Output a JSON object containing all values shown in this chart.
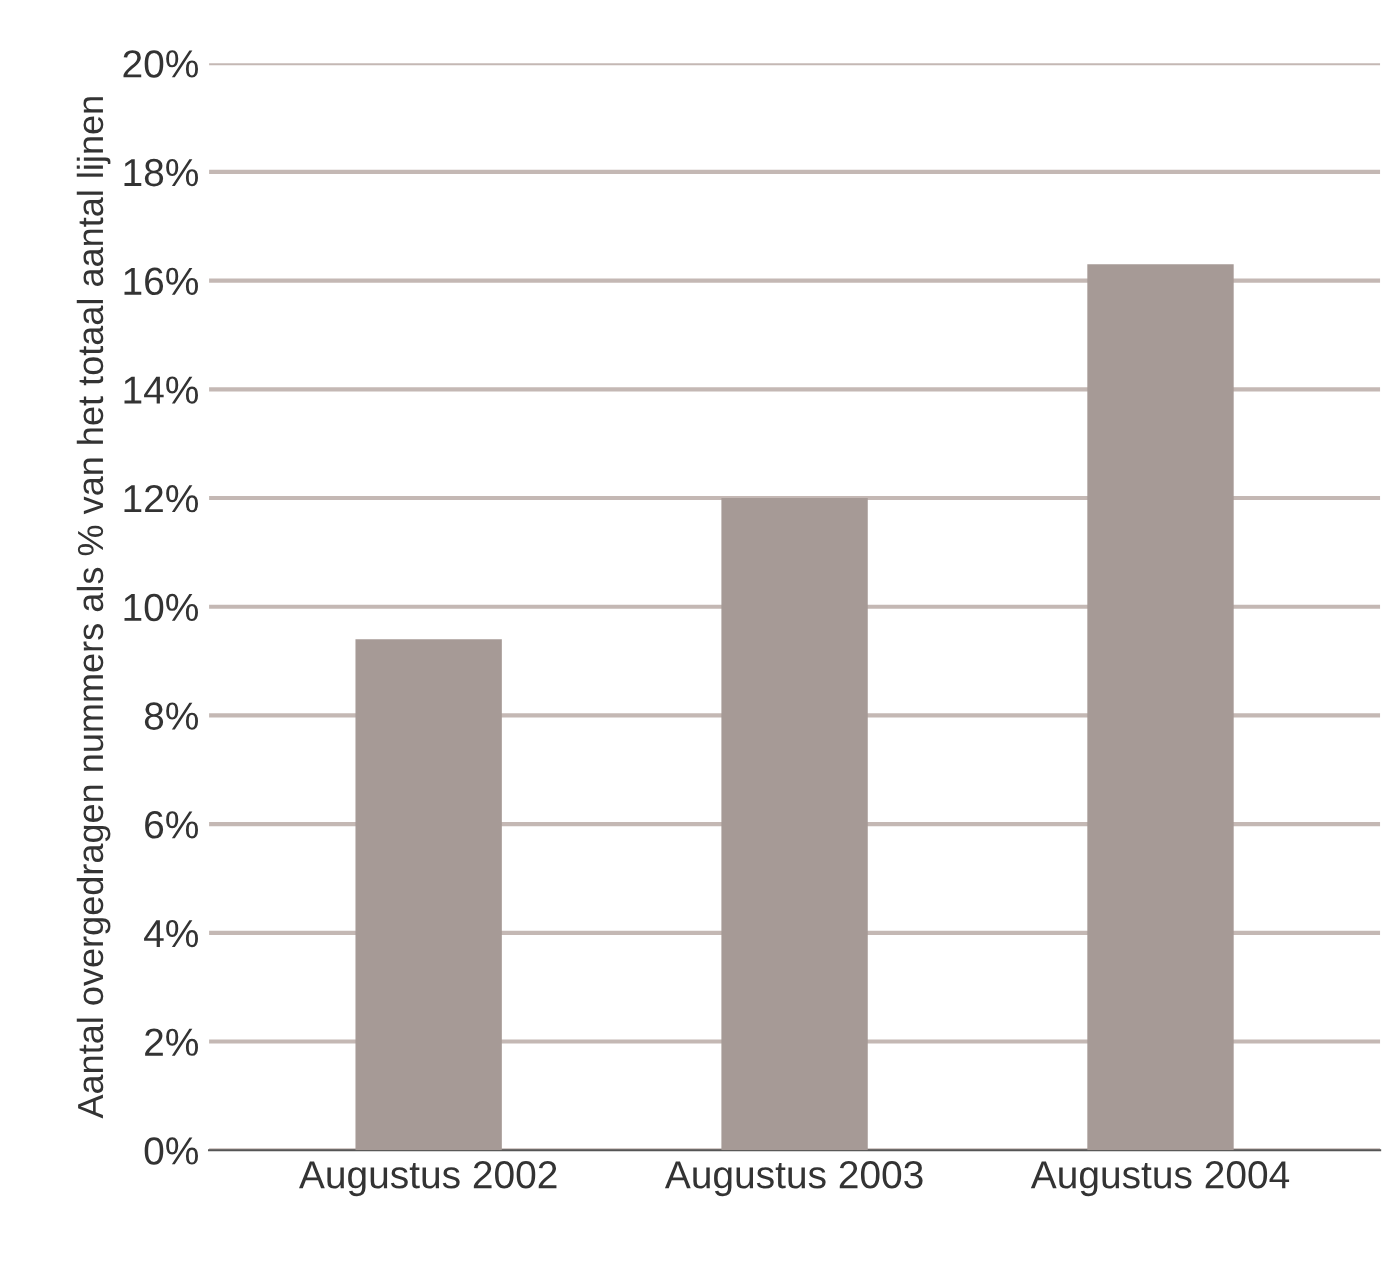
{
  "chart_data": {
    "type": "bar",
    "ylabel": "Aantal overgedragen nummers als % van het totaal aantal lijnen",
    "categories": [
      "Augustus 2002",
      "Augustus 2003",
      "Augustus 2004"
    ],
    "values": [
      9.4,
      12.0,
      16.3
    ],
    "color": "#a69a96",
    "ylim": [
      0,
      20
    ],
    "yticks": [
      {
        "value": 0,
        "label": "0%"
      },
      {
        "value": 2,
        "label": "2%"
      },
      {
        "value": 4,
        "label": "4%"
      },
      {
        "value": 6,
        "label": "6%"
      },
      {
        "value": 8,
        "label": "8%"
      },
      {
        "value": 10,
        "label": "10%"
      },
      {
        "value": 12,
        "label": "12%"
      },
      {
        "value": 14,
        "label": "14%"
      },
      {
        "value": 16,
        "label": "16%"
      },
      {
        "value": 18,
        "label": "18%"
      },
      {
        "value": 20,
        "label": "20%"
      }
    ],
    "grid": "y"
  }
}
